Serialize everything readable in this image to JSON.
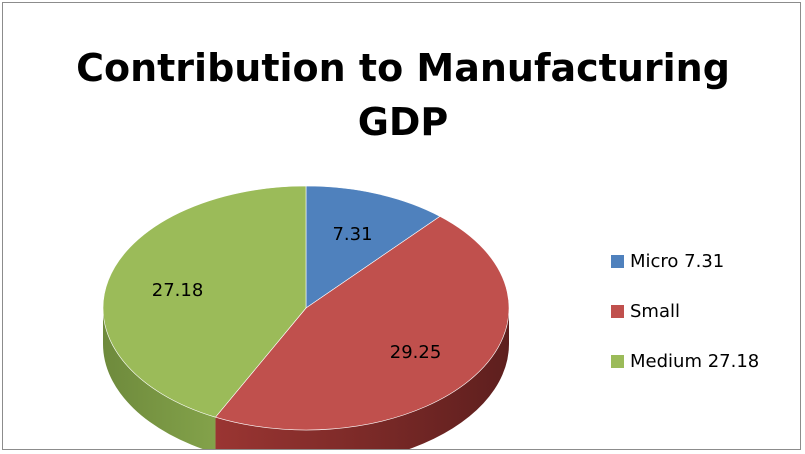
{
  "chart_data": {
    "type": "pie",
    "title": "Contribution to Manufacturing GDP",
    "categories": [
      "Micro 7.31",
      "Small",
      "Medium 27.18"
    ],
    "values": [
      7.31,
      29.25,
      27.18
    ],
    "data_labels": [
      "7.31",
      "29.25",
      "27.18"
    ],
    "colors": [
      "#4f81bd",
      "#c0504d",
      "#9bbb59"
    ],
    "legend_position": "right",
    "style": "3d"
  }
}
